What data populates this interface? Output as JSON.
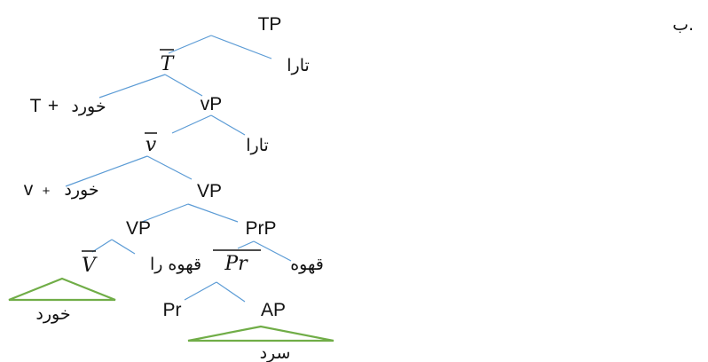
{
  "item_label": "ب.",
  "colors": {
    "branch": "#5b9bd5",
    "triangle": "#70ad47",
    "text": "#111111"
  },
  "nodes": {
    "tp": "TP",
    "tbar": "T",
    "tara1": "تارا",
    "t_head_word": "خورد",
    "t_head_plus": "+",
    "t_head_cat": "T",
    "vp_little": "vP",
    "vbar_little": "v",
    "tara2": "تارا",
    "v_head_word": "خورد",
    "v_head_plus": "+",
    "v_head_cat": "v",
    "vp1": "VP",
    "vp2": "VP",
    "prp": "PrP",
    "vbar": "V",
    "object": "قهوه را",
    "prbar": "Pr",
    "subj_pr": "قهوه",
    "khord": "خورد",
    "pr": "Pr",
    "ap": "AP",
    "sard": "سرد"
  }
}
